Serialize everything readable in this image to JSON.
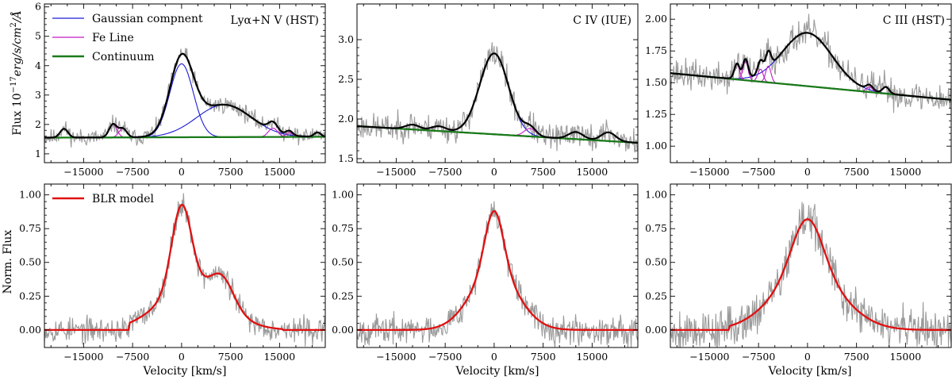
{
  "figure": {
    "top_ylabel": "Flux 10^{-17}erg/s/cm^2/Å",
    "bottom_ylabel": "Norm. Flux",
    "xlabel": "Velocity [km/s]",
    "colors": {
      "data": "#9a9a9a",
      "gaussian": "#1c1cd6",
      "fe": "#c21cc2",
      "total": "#000000",
      "continuum": "#1a7a1a",
      "blr": "#e01010"
    }
  },
  "legend_top": [
    {
      "label": "Gaussian compnent",
      "color": "#1c1cd6",
      "width": 1.3
    },
    {
      "label": "Fe Line",
      "color": "#c21cc2",
      "width": 1.3
    },
    {
      "label": "Continuum",
      "color": "#1a7a1a",
      "width": 2.5
    }
  ],
  "legend_bottom": [
    {
      "label": "BLR model",
      "color": "#e01010",
      "width": 2.5
    }
  ],
  "chart_data": [
    {
      "id": "lya-top",
      "type": "line",
      "title": "Lyα+N V (HST)",
      "xlim": [
        -21000,
        22000
      ],
      "ylim": [
        0.7,
        6.1
      ],
      "xticks": [
        -15000,
        -7500,
        0,
        7500,
        15000
      ],
      "yticks": [
        1,
        2,
        3,
        4,
        5,
        6
      ],
      "continuum": {
        "x": [
          -21000,
          22000
        ],
        "y": [
          1.55,
          1.58
        ]
      },
      "gaussians": [
        {
          "center": 0,
          "sigma": 1800,
          "amp": 2.5
        },
        {
          "center": 6500,
          "sigma": 4200,
          "amp": 1.1
        }
      ],
      "fe_lines": [
        {
          "center": -18000,
          "sigma": 600,
          "amp": 0.3
        },
        {
          "center": -10500,
          "sigma": 600,
          "amp": 0.45
        },
        {
          "center": -9000,
          "sigma": 600,
          "amp": 0.3
        },
        {
          "center": 14000,
          "sigma": 700,
          "amp": 0.3
        },
        {
          "center": 16500,
          "sigma": 500,
          "amp": 0.15
        },
        {
          "center": 20800,
          "sigma": 500,
          "amp": 0.15
        }
      ],
      "noise": {
        "amplitude": 0.22,
        "seed": 11
      }
    },
    {
      "id": "civ-top",
      "type": "line",
      "title": "C IV (IUE)",
      "xlim": [
        -21000,
        22000
      ],
      "ylim": [
        1.45,
        3.45
      ],
      "xticks": [
        -15000,
        -7500,
        0,
        7500,
        15000
      ],
      "yticks": [
        1.5,
        2.0,
        2.5,
        3.0
      ],
      "continuum": {
        "x": [
          -21000,
          22000
        ],
        "y": [
          1.91,
          1.7
        ]
      },
      "gaussians": [
        {
          "center": 0,
          "sigma": 2200,
          "amp": 1.02
        }
      ],
      "fe_lines": [
        {
          "center": -12500,
          "sigma": 1100,
          "amp": 0.06
        },
        {
          "center": -8500,
          "sigma": 1100,
          "amp": 0.06
        },
        {
          "center": 5500,
          "sigma": 900,
          "amp": 0.1
        },
        {
          "center": 12500,
          "sigma": 1100,
          "amp": 0.09
        },
        {
          "center": 17500,
          "sigma": 1100,
          "amp": 0.11
        }
      ],
      "noise": {
        "amplitude": 0.13,
        "seed": 23
      }
    },
    {
      "id": "ciii-top",
      "type": "line",
      "title": "C III (HST)",
      "xlim": [
        -21000,
        22000
      ],
      "ylim": [
        0.87,
        2.12
      ],
      "xticks": [
        -15000,
        -7500,
        0,
        7500,
        15000
      ],
      "yticks": [
        1.0,
        1.25,
        1.5,
        1.75,
        2.0
      ],
      "continuum": {
        "x": [
          -21000,
          22000
        ],
        "y": [
          1.575,
          1.365
        ]
      },
      "gaussians": [
        {
          "center": 0,
          "sigma": 3800,
          "amp": 0.42
        }
      ],
      "fe_lines": [
        {
          "center": -10800,
          "sigma": 400,
          "amp": 0.12
        },
        {
          "center": -9500,
          "sigma": 400,
          "amp": 0.15
        },
        {
          "center": -7200,
          "sigma": 400,
          "amp": 0.1
        },
        {
          "center": -6000,
          "sigma": 400,
          "amp": 0.13
        },
        {
          "center": 9500,
          "sigma": 500,
          "amp": 0.04
        },
        {
          "center": 12000,
          "sigma": 500,
          "amp": 0.05
        }
      ],
      "noise": {
        "amplitude": 0.09,
        "seed": 37
      }
    },
    {
      "id": "lya-bottom",
      "type": "line",
      "xlim": [
        -21000,
        22000
      ],
      "ylim": [
        -0.13,
        1.08
      ],
      "xticks": [
        -15000,
        -7500,
        0,
        7500,
        15000
      ],
      "yticks": [
        0.0,
        0.25,
        0.5,
        0.75,
        1.0
      ],
      "ytick_labels": [
        "0.00",
        "0.25",
        "0.50",
        "0.75",
        "1.00"
      ],
      "blr_model": {
        "components": [
          {
            "center": 0,
            "sigma": 1500,
            "amp": 0.62
          },
          {
            "center": 6200,
            "sigma": 1800,
            "amp": 0.2
          },
          {
            "center": 1500,
            "sigma": 5000,
            "amp": 0.32
          }
        ],
        "cutoff": [
          -8000,
          15500
        ]
      },
      "noise": {
        "amplitude": 0.07,
        "seed": 53
      }
    },
    {
      "id": "civ-bottom",
      "type": "line",
      "xlim": [
        -21000,
        22000
      ],
      "ylim": [
        -0.13,
        1.08
      ],
      "xticks": [
        -15000,
        -7500,
        0,
        7500,
        15000
      ],
      "yticks": [
        0.0,
        0.25,
        0.5,
        0.75,
        1.0
      ],
      "ytick_labels": [
        "0.00",
        "0.25",
        "0.50",
        "0.75",
        "1.00"
      ],
      "blr_model": {
        "components": [
          {
            "center": 0,
            "sigma": 1400,
            "amp": 0.45
          },
          {
            "center": 0,
            "sigma": 3600,
            "amp": 0.43
          }
        ],
        "cutoff": [
          -21000,
          22000
        ]
      },
      "noise": {
        "amplitude": 0.08,
        "seed": 67
      }
    },
    {
      "id": "ciii-bottom",
      "type": "line",
      "xlim": [
        -21000,
        22000
      ],
      "ylim": [
        -0.13,
        1.08
      ],
      "xticks": [
        -15000,
        -7500,
        0,
        7500,
        15000
      ],
      "yticks": [
        0.0,
        0.25,
        0.5,
        0.75,
        1.0
      ],
      "ytick_labels": [
        "0.00",
        "0.25",
        "0.50",
        "0.75",
        "1.00"
      ],
      "blr_model": {
        "components": [
          {
            "center": 0,
            "sigma": 2300,
            "amp": 0.4
          },
          {
            "center": 0,
            "sigma": 5200,
            "amp": 0.42
          }
        ],
        "cutoff": [
          -12000,
          22000
        ]
      },
      "noise": {
        "amplitude": 0.12,
        "seed": 79
      }
    }
  ]
}
